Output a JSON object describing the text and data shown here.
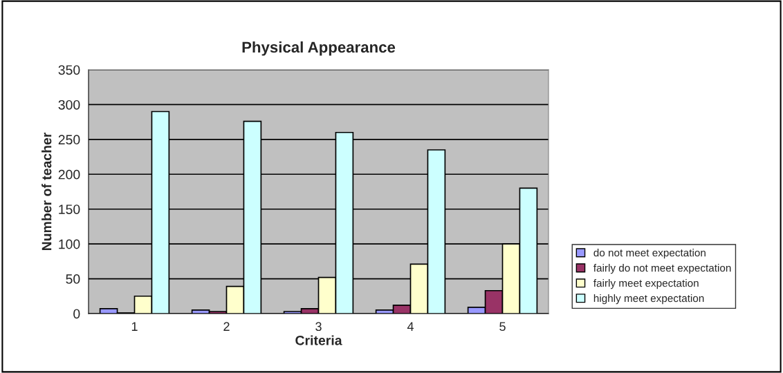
{
  "chart_data": {
    "type": "bar",
    "title": "Physical Appearance",
    "xlabel": "Criteria",
    "ylabel": "Number of teacher",
    "categories": [
      "1",
      "2",
      "3",
      "4",
      "5"
    ],
    "series": [
      {
        "name": "do not meet expectation",
        "color": "#9999ff",
        "values": [
          7,
          5,
          3,
          5,
          9
        ]
      },
      {
        "name": "fairly do not meet expectation",
        "color": "#993366",
        "values": [
          1,
          3,
          7,
          12,
          33
        ]
      },
      {
        "name": "fairly meet expectation",
        "color": "#ffffcc",
        "values": [
          25,
          39,
          52,
          71,
          100
        ]
      },
      {
        "name": "highly meet expectation",
        "color": "#ccffff",
        "values": [
          290,
          276,
          260,
          235,
          180
        ]
      }
    ],
    "ylim": [
      0,
      350
    ],
    "yticks": [
      0,
      50,
      100,
      150,
      200,
      250,
      300,
      350
    ],
    "grid": "y",
    "legend": "bottom right"
  }
}
